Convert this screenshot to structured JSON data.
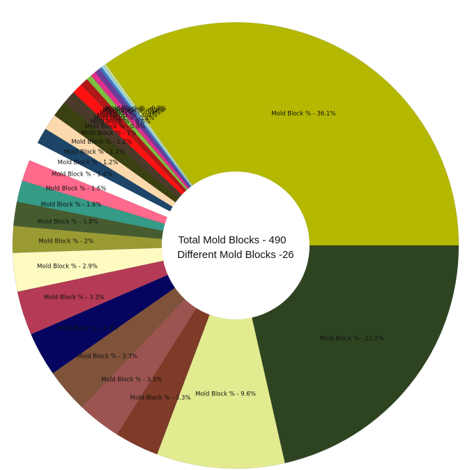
{
  "chart_data": {
    "type": "pie",
    "donut": true,
    "center_text": [
      "Total Mold Blocks - 490",
      "Different Mold Blocks -26"
    ],
    "slices": [
      {
        "label": "Mold Block % - 36.1%",
        "value": 36.1,
        "color": "#b5b800"
      },
      {
        "label": "Mold Block % - 0.2%",
        "value": 0.2,
        "color": "#c7dd8f"
      },
      {
        "label": "Mold Block % - 0.2%",
        "value": 0.2,
        "color": "#9ad3e8"
      },
      {
        "label": "Mold Block % - 0.2%",
        "value": 0.2,
        "color": "#3b78c0"
      },
      {
        "label": "Mold Block % - 0.4%",
        "value": 0.4,
        "color": "#6b3d99"
      },
      {
        "label": "Mold Block % - 0.4%",
        "value": 0.4,
        "color": "#e02f8e"
      },
      {
        "label": "Mold Block % - 0.4%",
        "value": 0.4,
        "color": "#7fbf3f"
      },
      {
        "label": "Mold Block % - 0.6%",
        "value": 0.6,
        "color": "#b01818"
      },
      {
        "label": "Mold Block % - 0.8%",
        "value": 0.8,
        "color": "#ff1111"
      },
      {
        "label": "Mold Block % - 1%",
        "value": 1.0,
        "color": "#4a3a2a"
      },
      {
        "label": "Mold Block % - 1.2%",
        "value": 1.2,
        "color": "#3a4010"
      },
      {
        "label": "Mold Block % - 1.2%",
        "value": 1.2,
        "color": "#fbd9ad"
      },
      {
        "label": "Mold Block % - 1.2%",
        "value": 1.2,
        "color": "#1c4568"
      },
      {
        "label": "Mold Block % - 1.4%",
        "value": 1.4,
        "color": "#ffffff"
      },
      {
        "label": "Mold Block % - 1.6%",
        "value": 1.6,
        "color": "#ff6a8c"
      },
      {
        "label": "Mold Block % - 1.6%",
        "value": 1.6,
        "color": "#359a86"
      },
      {
        "label": "Mold Block % - 1.8%",
        "value": 1.8,
        "color": "#465c30"
      },
      {
        "label": "Mold Block % - 2%",
        "value": 2.0,
        "color": "#9a9a32"
      },
      {
        "label": "Mold Block % - 2.9%",
        "value": 2.9,
        "color": "#fdfbc0"
      },
      {
        "label": "Mold Block % - 3.3%",
        "value": 3.3,
        "color": "#b53a55"
      },
      {
        "label": "Mold Block % - 3.3%",
        "value": 3.3,
        "color": "#050560"
      },
      {
        "label": "Mold Block % - 3.3%",
        "value": 3.3,
        "color": "#7f523a"
      },
      {
        "label": "Mold Block % - 3.3%",
        "value": 3.3,
        "color": "#9c5450"
      },
      {
        "label": "Mold Block % - 3.3%",
        "value": 3.3,
        "color": "#7f3a28"
      },
      {
        "label": "Mold Block % - 9.6%",
        "value": 9.6,
        "color": "#e3eb90"
      },
      {
        "label": "Mold Block % - 22.2%",
        "value": 22.2,
        "color": "#2e4421"
      }
    ]
  }
}
